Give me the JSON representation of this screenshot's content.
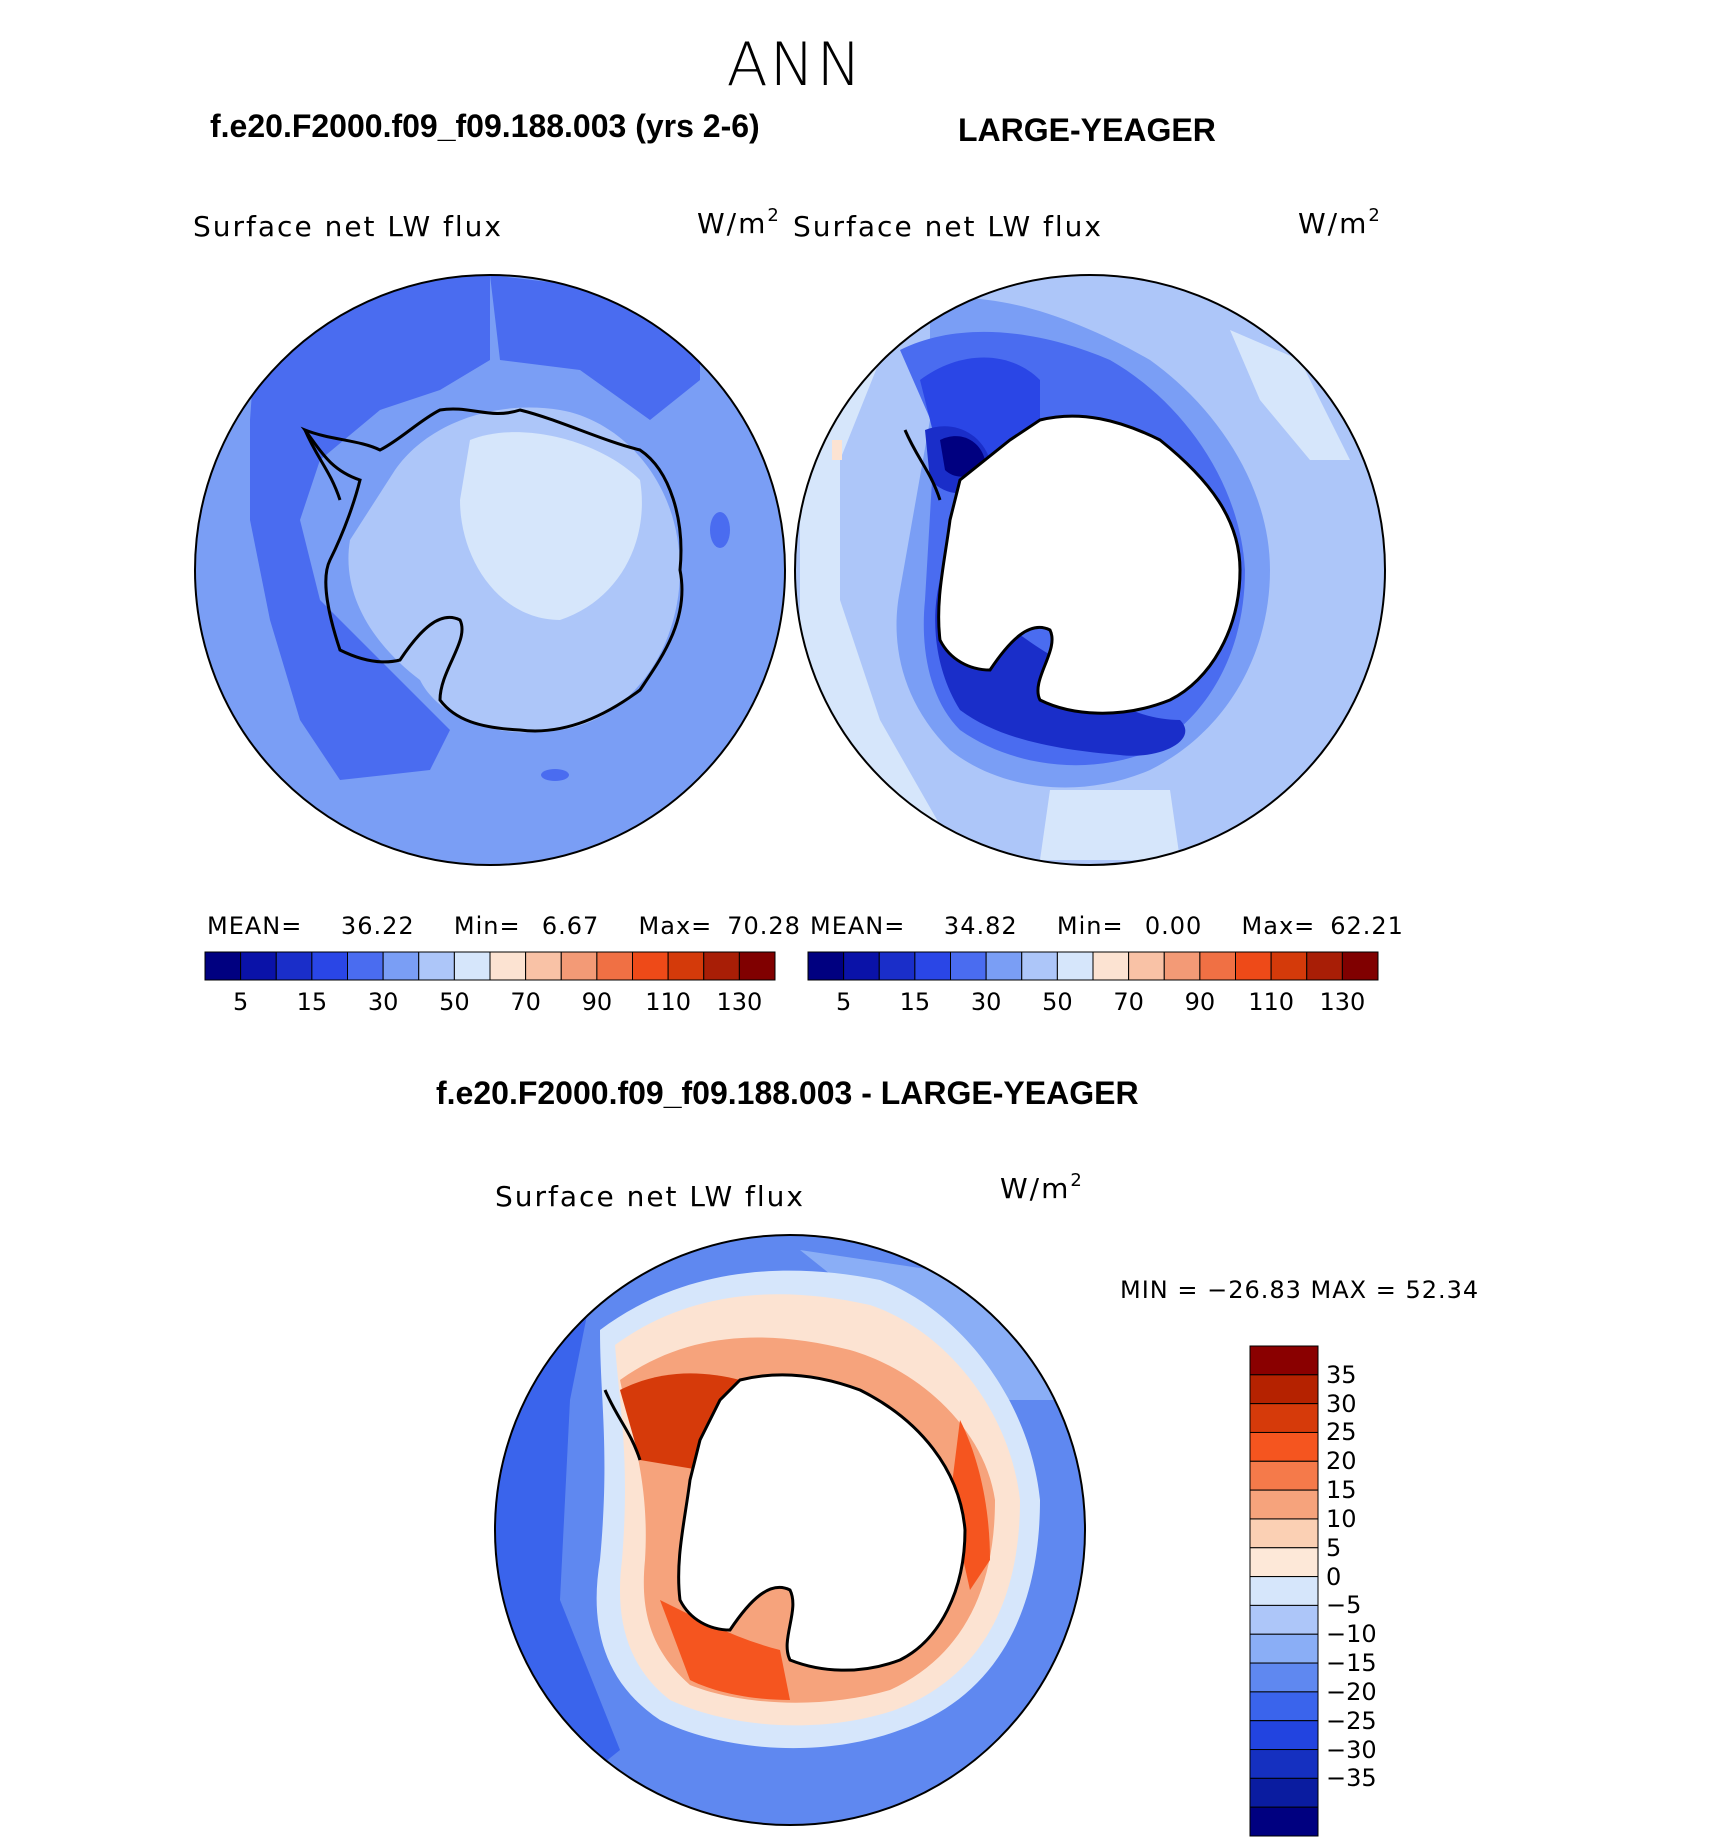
{
  "figure": {
    "season": "ANN",
    "test_case_title": "f.e20.F2000.f09_f09.188.003 (yrs 2-6)",
    "obs_title": "LARGE-YEAGER",
    "diff_title": "f.e20.F2000.f09_f09.188.003 - LARGE-YEAGER"
  },
  "panels": {
    "test": {
      "variable": "Surface net LW flux",
      "units": "W/m",
      "units_sup": "2",
      "mean_label": "MEAN=",
      "mean": "36.22",
      "min_label": "Min=",
      "min": "6.67",
      "max_label": "Max=",
      "max": "70.28"
    },
    "obs": {
      "variable": "Surface net LW flux",
      "units": "W/m",
      "units_sup": "2",
      "mean_label": "MEAN=",
      "mean": "34.82",
      "min_label": "Min=",
      "min": "0.00",
      "max_label": "Max=",
      "max": "62.21"
    },
    "diff": {
      "variable": "Surface net LW flux",
      "units": "W/m",
      "units_sup": "2",
      "minmax_text": "MIN = −26.83 MAX =   52.34"
    }
  },
  "colorbar_abs": {
    "colors": [
      "#000080",
      "#0a12a8",
      "#1a2ec9",
      "#2a46e6",
      "#4a6cf0",
      "#7a9ef5",
      "#adc6f9",
      "#d6e6fb",
      "#fce3d2",
      "#f9c2a6",
      "#f39a76",
      "#f07044",
      "#ee4a18",
      "#d43a0a",
      "#a81e06",
      "#800000"
    ],
    "tick_labels": [
      "5",
      "15",
      "30",
      "50",
      "70",
      "90",
      "110",
      "130"
    ],
    "ticks": [
      5,
      15,
      30,
      50,
      70,
      90,
      110,
      130
    ]
  },
  "colorbar_diff": {
    "colors_top_to_bottom": [
      "#8a0000",
      "#b52200",
      "#d63a0a",
      "#f5551f",
      "#f57a4a",
      "#f6a37c",
      "#fbd0b4",
      "#fde8d8",
      "#d6e6fb",
      "#adc6f9",
      "#8aaef6",
      "#5f88f0",
      "#3a64ec",
      "#2244e0",
      "#1530c0",
      "#0a1ca0",
      "#000080"
    ],
    "labels_top_to_bottom": [
      "35",
      "30",
      "25",
      "20",
      "15",
      "10",
      "5",
      "0",
      "−5",
      "−10",
      "−15",
      "−20",
      "−25",
      "−30",
      "−35"
    ]
  }
}
